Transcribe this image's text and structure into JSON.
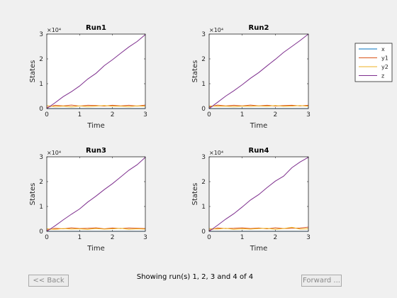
{
  "chart_data": [
    {
      "type": "line",
      "title": "Run1",
      "xlabel": "Time",
      "ylabel": "States",
      "xlim": [
        0,
        3
      ],
      "ylim": [
        0,
        30000
      ],
      "xticks": [
        0,
        1,
        2,
        3
      ],
      "yticks": [
        0,
        1,
        2,
        3
      ],
      "ytick_labels": [
        "0",
        "1",
        "2",
        "3"
      ],
      "exponent_label": "×10⁴",
      "x": [
        0,
        0.25,
        0.5,
        0.75,
        1.0,
        1.25,
        1.5,
        1.75,
        2.0,
        2.25,
        2.5,
        2.75,
        3.0
      ],
      "series": [
        {
          "name": "x",
          "color": "#0072bd",
          "values": [
            0,
            0,
            0,
            0,
            0,
            0,
            0,
            0,
            0,
            0,
            0,
            0,
            0
          ]
        },
        {
          "name": "y1",
          "color": "#d95319",
          "values": [
            500,
            1300,
            1100,
            1400,
            1000,
            1300,
            1200,
            1000,
            1300,
            1100,
            1300,
            1000,
            1400
          ]
        },
        {
          "name": "y2",
          "color": "#edb120",
          "values": [
            1200,
            800,
            1000,
            700,
            1100,
            800,
            1000,
            1200,
            900,
            1000,
            800,
            1100,
            900
          ]
        },
        {
          "name": "z",
          "color": "#7e2f8e",
          "values": [
            0,
            2300,
            4800,
            6800,
            9100,
            11900,
            14200,
            17300,
            19700,
            22300,
            24800,
            27000,
            29800
          ]
        }
      ]
    },
    {
      "type": "line",
      "title": "Run2",
      "xlabel": "Time",
      "ylabel": "States",
      "xlim": [
        0,
        3
      ],
      "ylim": [
        0,
        30000
      ],
      "xticks": [
        0,
        1,
        2,
        3
      ],
      "yticks": [
        0,
        1,
        2,
        3
      ],
      "ytick_labels": [
        "0",
        "1",
        "2",
        "3"
      ],
      "exponent_label": "×10⁴",
      "x": [
        0,
        0.25,
        0.5,
        0.75,
        1.0,
        1.25,
        1.5,
        1.75,
        2.0,
        2.25,
        2.5,
        2.75,
        3.0
      ],
      "series": [
        {
          "name": "x",
          "color": "#0072bd",
          "values": [
            0,
            0,
            0,
            0,
            0,
            0,
            0,
            0,
            0,
            0,
            0,
            0,
            0
          ]
        },
        {
          "name": "y1",
          "color": "#d95319",
          "values": [
            600,
            1400,
            1100,
            1300,
            1100,
            1400,
            1100,
            1300,
            1000,
            1200,
            1300,
            1100,
            1300
          ]
        },
        {
          "name": "y2",
          "color": "#edb120",
          "values": [
            1100,
            900,
            1000,
            800,
            1000,
            900,
            1100,
            900,
            1200,
            900,
            1000,
            1200,
            900
          ]
        },
        {
          "name": "z",
          "color": "#7e2f8e",
          "values": [
            0,
            2500,
            5000,
            7200,
            9600,
            12200,
            14500,
            17200,
            19800,
            22600,
            25000,
            27400,
            30000
          ]
        }
      ]
    },
    {
      "type": "line",
      "title": "Run3",
      "xlabel": "Time",
      "ylabel": "States",
      "xlim": [
        0,
        3
      ],
      "ylim": [
        0,
        30000
      ],
      "xticks": [
        0,
        1,
        2,
        3
      ],
      "yticks": [
        0,
        1,
        2,
        3
      ],
      "ytick_labels": [
        "0",
        "1",
        "2",
        "3"
      ],
      "exponent_label": "×10⁴",
      "x": [
        0,
        0.25,
        0.5,
        0.75,
        1.0,
        1.25,
        1.5,
        1.75,
        2.0,
        2.25,
        2.5,
        2.75,
        3.0
      ],
      "series": [
        {
          "name": "x",
          "color": "#0072bd",
          "values": [
            0,
            0,
            0,
            0,
            0,
            0,
            0,
            0,
            0,
            0,
            0,
            0,
            0
          ]
        },
        {
          "name": "y1",
          "color": "#d95319",
          "values": [
            500,
            1200,
            1000,
            1400,
            1100,
            1200,
            1400,
            1000,
            1300,
            1100,
            1300,
            1200,
            1100
          ]
        },
        {
          "name": "y2",
          "color": "#edb120",
          "values": [
            1000,
            800,
            1100,
            900,
            1000,
            800,
            1100,
            900,
            1000,
            1200,
            800,
            1000,
            900
          ]
        },
        {
          "name": "z",
          "color": "#7e2f8e",
          "values": [
            0,
            2200,
            4600,
            6900,
            9000,
            11800,
            14200,
            16800,
            19200,
            21900,
            24600,
            26800,
            29800
          ]
        }
      ]
    },
    {
      "type": "line",
      "title": "Run4",
      "xlabel": "Time",
      "ylabel": "States",
      "xlim": [
        0,
        3
      ],
      "ylim": [
        0,
        30000
      ],
      "xticks": [
        0,
        1,
        2,
        3
      ],
      "yticks": [
        0,
        1,
        2,
        3
      ],
      "ytick_labels": [
        "0",
        "1",
        "2",
        "3"
      ],
      "exponent_label": "×10⁴",
      "x": [
        0,
        0.25,
        0.5,
        0.75,
        1.0,
        1.25,
        1.5,
        1.75,
        2.0,
        2.25,
        2.5,
        2.75,
        3.0
      ],
      "series": [
        {
          "name": "x",
          "color": "#0072bd",
          "values": [
            0,
            0,
            0,
            0,
            0,
            0,
            0,
            0,
            0,
            0,
            0,
            0,
            0
          ]
        },
        {
          "name": "y1",
          "color": "#d95319",
          "values": [
            500,
            1300,
            1100,
            1200,
            1400,
            1100,
            1300,
            1000,
            1400,
            1100,
            1200,
            1300,
            1700
          ]
        },
        {
          "name": "y2",
          "color": "#edb120",
          "values": [
            1100,
            900,
            1200,
            800,
            1000,
            900,
            1100,
            1200,
            800,
            1100,
            1600,
            900,
            1000
          ]
        },
        {
          "name": "z",
          "color": "#7e2f8e",
          "values": [
            0,
            2400,
            4900,
            7100,
            9800,
            12600,
            14800,
            17600,
            20200,
            22200,
            25600,
            27900,
            29800
          ]
        }
      ]
    }
  ],
  "legend": {
    "position": "right",
    "entries": [
      {
        "name": "x",
        "color": "#0072bd"
      },
      {
        "name": "y1",
        "color": "#d95319"
      },
      {
        "name": "y2",
        "color": "#edb120"
      },
      {
        "name": "z",
        "color": "#7e2f8e"
      }
    ]
  },
  "navigation": {
    "back_label": "<< Back",
    "forward_label": "Forward ...",
    "status_text": "Showing run(s) 1, 2, 3 and 4 of 4"
  }
}
